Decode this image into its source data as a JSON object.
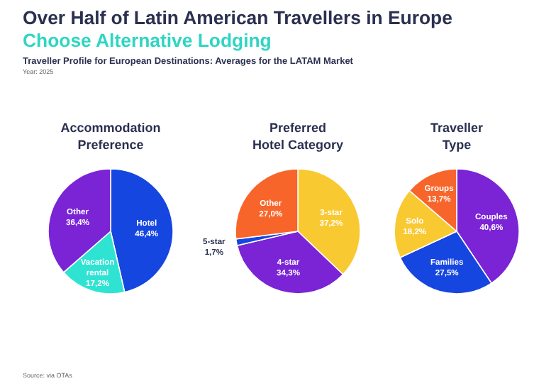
{
  "chart_data": [
    {
      "type": "other",
      "title": "Over Half of Latin American Travellers in Europe",
      "subtitle": "Choose Alternative Lodging",
      "annotations": [
        "Traveller Profile for European Destinations: Averages for the LATAM Market",
        "Year: 2025",
        "Source: via OTAs"
      ]
    },
    {
      "type": "pie",
      "title": "Accommodation Preference",
      "categories": [
        "Hotel",
        "Vacation rental",
        "Other"
      ],
      "values": [
        46.4,
        17.2,
        36.4
      ],
      "value_labels": [
        "46,4%",
        "17,2%",
        "36,4%"
      ],
      "colors": [
        "#1646e0",
        "#2fe3d3",
        "#7a24d6"
      ]
    },
    {
      "type": "pie",
      "title": "Preferred Hotel Category",
      "categories": [
        "3-star",
        "4-star",
        "5-star",
        "Other"
      ],
      "values": [
        37.2,
        34.3,
        1.7,
        27.0
      ],
      "value_labels": [
        "37,2%",
        "34,3%",
        "1,7%",
        "27,0%"
      ],
      "colors": [
        "#f9c932",
        "#7a24d6",
        "#1646e0",
        "#f8652b"
      ]
    },
    {
      "type": "pie",
      "title": "Traveller Type",
      "categories": [
        "Couples",
        "Families",
        "Solo",
        "Groups"
      ],
      "values": [
        40.6,
        27.5,
        18.2,
        13.7
      ],
      "value_labels": [
        "40,6%",
        "27,5%",
        "18,2%",
        "13,7%"
      ],
      "colors": [
        "#7a24d6",
        "#1646e0",
        "#f9c932",
        "#f8652b"
      ]
    }
  ]
}
